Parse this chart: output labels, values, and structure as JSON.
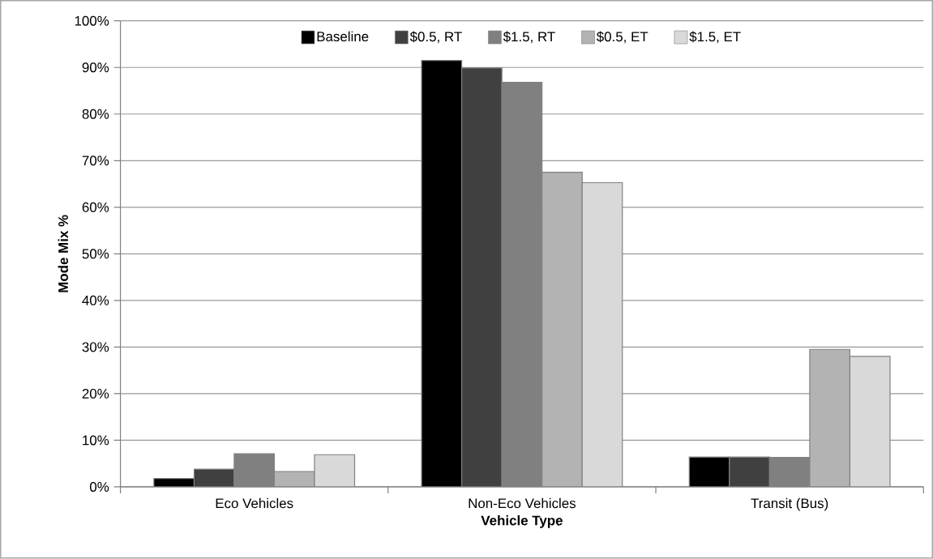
{
  "chart_data": {
    "type": "bar",
    "xlabel": "Vehicle Type",
    "ylabel": "Mode Mix %",
    "categories": [
      "Eco Vehicles",
      "Non-Eco Vehicles",
      "Transit (Bus)"
    ],
    "series": [
      {
        "name": "Baseline",
        "color": "#000000",
        "values": [
          1.8,
          91.5,
          6.4
        ]
      },
      {
        "name": "$0.5, RT",
        "color": "#404040",
        "values": [
          3.8,
          89.9,
          6.4
        ]
      },
      {
        "name": "$1.5, RT",
        "color": "#808080",
        "values": [
          7.1,
          86.8,
          6.3
        ]
      },
      {
        "name": "$0.5, ET",
        "color": "#b3b3b3",
        "values": [
          3.3,
          67.5,
          29.5
        ]
      },
      {
        "name": "$1.5, ET",
        "color": "#d9d9d9",
        "values": [
          6.9,
          65.3,
          28.0
        ]
      }
    ],
    "ylim": [
      0,
      100
    ],
    "yticks": [
      {
        "value": 0,
        "label": "0%"
      },
      {
        "value": 10,
        "label": "10%"
      },
      {
        "value": 20,
        "label": "20%"
      },
      {
        "value": 30,
        "label": "30%"
      },
      {
        "value": 40,
        "label": "40%"
      },
      {
        "value": 50,
        "label": "50%"
      },
      {
        "value": 60,
        "label": "60%"
      },
      {
        "value": 70,
        "label": "70%"
      },
      {
        "value": 80,
        "label": "80%"
      },
      {
        "value": 90,
        "label": "90%"
      },
      {
        "value": 100,
        "label": "100%"
      }
    ],
    "grid": "y",
    "legend": "top"
  }
}
